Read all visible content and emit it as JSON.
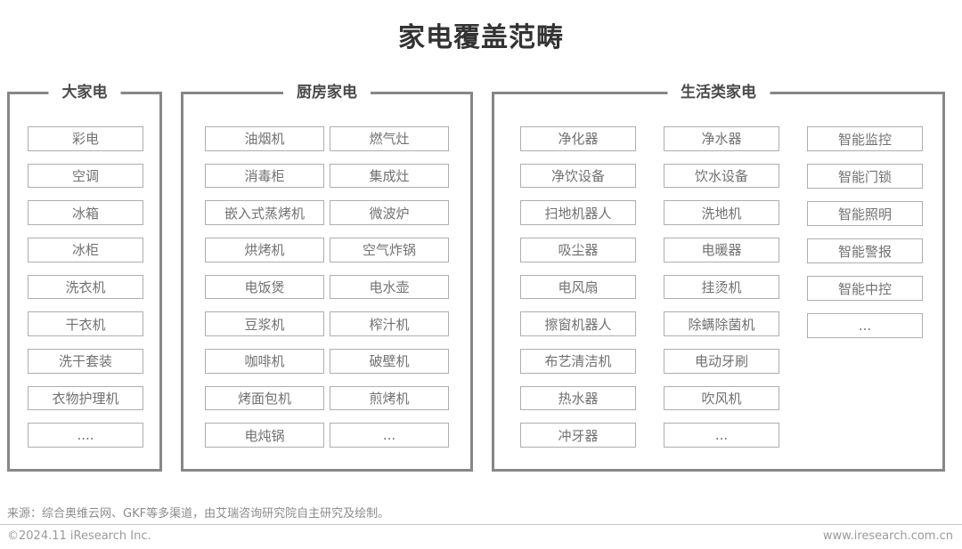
{
  "title": "家电覆盖范畴",
  "groups": [
    {
      "title": "大家电",
      "columns": [
        [
          "彩电",
          "空调",
          "冰箱",
          "冰柜",
          "洗衣机",
          "干衣机",
          "洗干套装",
          "衣物护理机",
          "...."
        ]
      ]
    },
    {
      "title": "厨房家电",
      "columns": [
        [
          "油烟机",
          "消毒柜",
          "嵌入式蒸烤机",
          "烘烤机",
          "电饭煲",
          "豆浆机",
          "咖啡机",
          "烤面包机",
          "电炖锅"
        ],
        [
          "燃气灶",
          "集成灶",
          "微波炉",
          "空气炸锅",
          "电水壶",
          "榨汁机",
          "破壁机",
          "煎烤机",
          "..."
        ]
      ]
    },
    {
      "title": "生活类家电",
      "columns": [
        [
          "净化器",
          "净饮设备",
          "扫地机器人",
          "吸尘器",
          "电风扇",
          "擦窗机器人",
          "布艺清洁机",
          "热水器",
          "冲牙器"
        ],
        [
          "净水器",
          "饮水设备",
          "洗地机",
          "电暖器",
          "挂烫机",
          "除螨除菌机",
          "电动牙刷",
          "吹风机",
          "..."
        ],
        [
          "智能监控",
          "智能门锁",
          "智能照明",
          "智能警报",
          "智能中控",
          "..."
        ]
      ]
    }
  ],
  "footer": {
    "source": "来源：综合奥维云网、GKF等多渠道，由艾瑞咨询研究院自主研究及绘制。",
    "copyright": "©2024.11 iResearch Inc.",
    "website": "www.iresearch.com.cn"
  },
  "colors": {
    "title_text": "#333333",
    "group_border": "#878787",
    "group_title_text": "#4a4a4a",
    "item_border": "#aeaeae",
    "item_text": "#717171",
    "footer_text": "#9a9a9a"
  }
}
